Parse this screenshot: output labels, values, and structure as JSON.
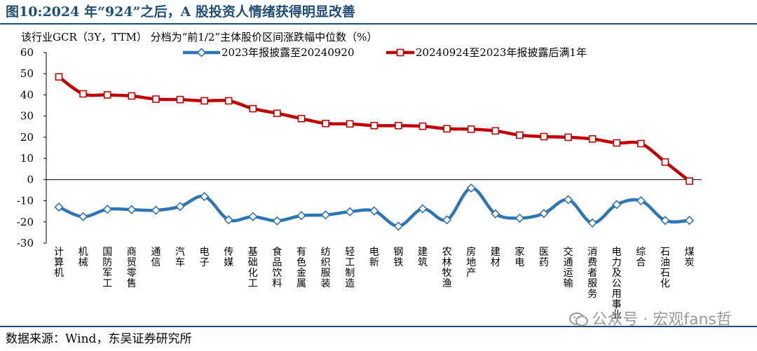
{
  "figure": {
    "title": "图10:2024 年“924”之后，A 股投资人情绪获得明显改善",
    "source": "数据来源：Wind，东吴证券研究所",
    "watermark": "公众号 · 宏观fans哲"
  },
  "chart_data": {
    "type": "line",
    "title": "",
    "ylabel": "该行业GCR（3Y，TTM） 分档为“前1/2”主体股价区间涨跌幅中位数（%）",
    "xlabel": "",
    "ylim": [
      -30,
      60
    ],
    "yticks": [
      60,
      50,
      40,
      30,
      20,
      10,
      0,
      -10,
      -20,
      -30
    ],
    "grid": false,
    "legend_position": "top",
    "categories": [
      "计算机",
      "机械",
      "国防军工",
      "商贸零售",
      "通信",
      "汽车",
      "电子",
      "传媒",
      "基础化工",
      "食品饮料",
      "有色金属",
      "纺织服装",
      "轻工制造",
      "电新",
      "钢铁",
      "建筑",
      "农林牧渔",
      "房地产",
      "建材",
      "家电",
      "医药",
      "交通运输",
      "消费者服务",
      "电力及公用事业",
      "综合",
      "石油石化",
      "煤炭"
    ],
    "series": [
      {
        "name": "2023年报披露至20240920",
        "color": "#2e75b6",
        "marker": "diamond",
        "values": [
          -13,
          -17.5,
          -14,
          -14.2,
          -14.5,
          -12.7,
          -8,
          -19,
          -17.5,
          -19.5,
          -17,
          -16.7,
          -15.2,
          -14.8,
          -22,
          -13.8,
          -19,
          -4,
          -16.2,
          -18.2,
          -16,
          -9.5,
          -20.5,
          -11.8,
          -10,
          -19.3,
          -19.3
        ]
      },
      {
        "name": "20240924至2023年报披露后满1年",
        "color": "#c00000",
        "marker": "square",
        "values": [
          48.5,
          40.5,
          40,
          39.5,
          38,
          37.8,
          37.2,
          37.2,
          33.5,
          31.3,
          28.8,
          26.5,
          26.3,
          25.5,
          25.5,
          25.2,
          24,
          23.8,
          23,
          21,
          20.3,
          20,
          19.2,
          17.3,
          17,
          8.3,
          -0.7
        ]
      }
    ]
  }
}
